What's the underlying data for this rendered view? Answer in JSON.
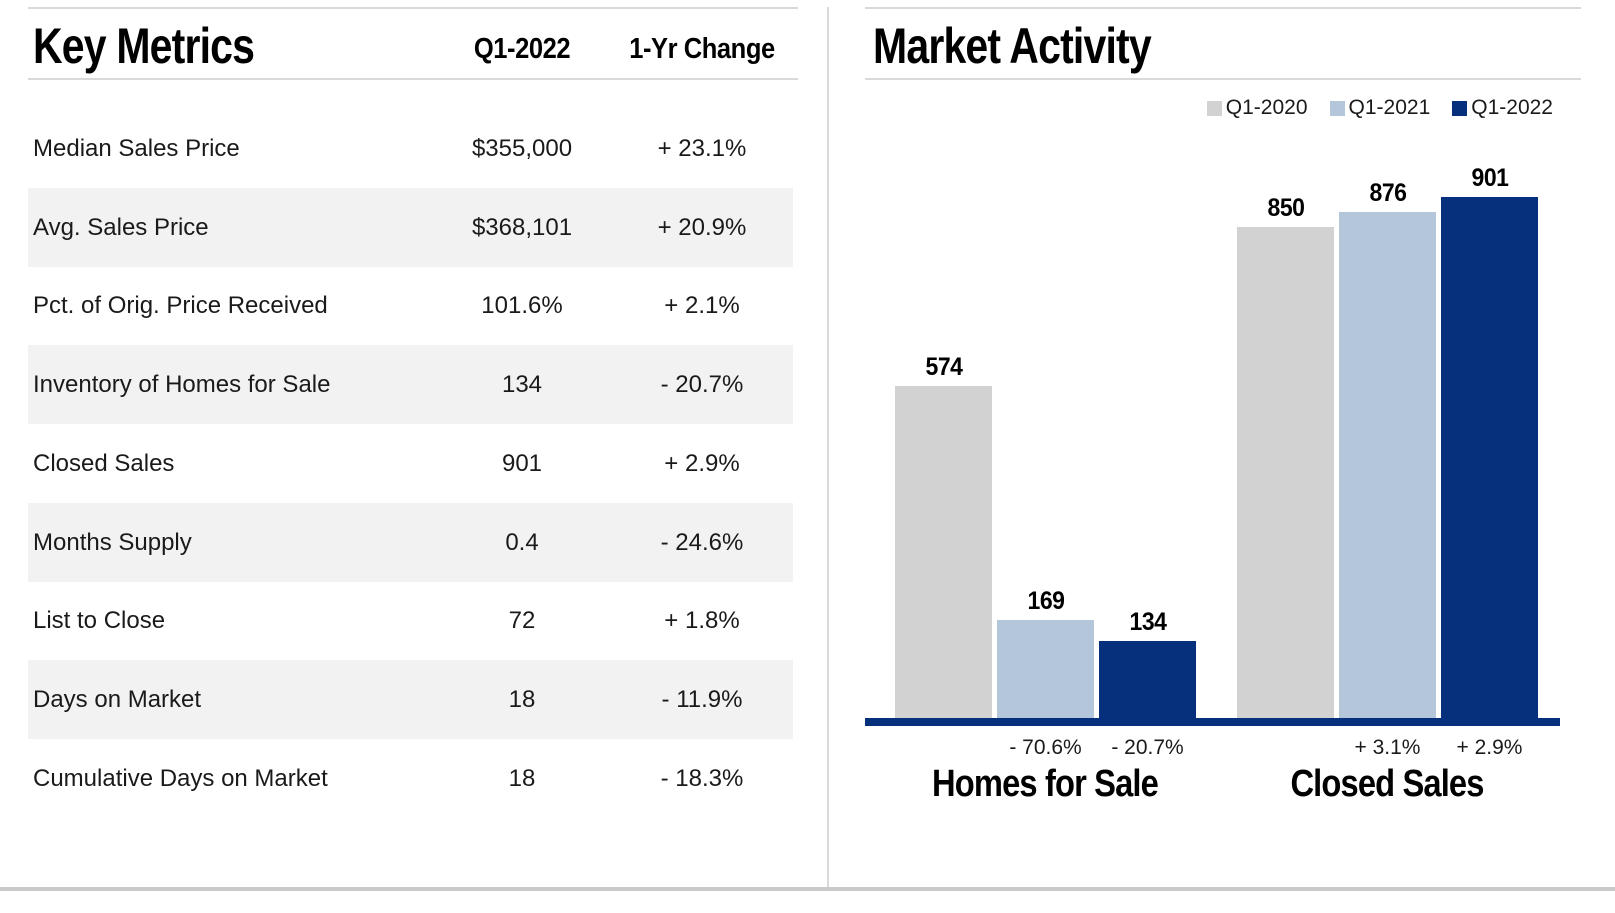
{
  "left_panel": {
    "title": "Key Metrics",
    "column_headers": [
      "Q1-2022",
      "1-Yr Change"
    ],
    "rows": [
      {
        "label": "Median Sales Price",
        "value": "$355,000",
        "change": "+ 23.1%",
        "shaded": false
      },
      {
        "label": "Avg. Sales Price",
        "value": "$368,101",
        "change": "+ 20.9%",
        "shaded": true
      },
      {
        "label": "Pct. of Orig. Price Received",
        "value": "101.6%",
        "change": "+ 2.1%",
        "shaded": false
      },
      {
        "label": "Inventory of Homes for Sale",
        "value": "134",
        "change": "- 20.7%",
        "shaded": true
      },
      {
        "label": "Closed Sales",
        "value": "901",
        "change": "+ 2.9%",
        "shaded": false
      },
      {
        "label": "Months Supply",
        "value": "0.4",
        "change": "- 24.6%",
        "shaded": true
      },
      {
        "label": "List to Close",
        "value": "72",
        "change": "+ 1.8%",
        "shaded": false
      },
      {
        "label": "Days on Market",
        "value": "18",
        "change": "- 11.9%",
        "shaded": true
      },
      {
        "label": "Cumulative Days on Market",
        "value": "18",
        "change": "- 18.3%",
        "shaded": false
      }
    ]
  },
  "right_panel": {
    "title": "Market Activity",
    "legend": [
      {
        "label": "Q1-2020",
        "color": "#d2d2d2"
      },
      {
        "label": "Q1-2021",
        "color": "#b4c6da"
      },
      {
        "label": "Q1-2022",
        "color": "#06307c"
      }
    ]
  },
  "chart_data": {
    "type": "bar",
    "title": "Market Activity",
    "categories": [
      "Homes for Sale",
      "Closed Sales"
    ],
    "series": [
      {
        "name": "Q1-2020",
        "color": "#d2d2d2",
        "values": [
          574,
          850
        ]
      },
      {
        "name": "Q1-2021",
        "color": "#b4c6da",
        "values": [
          169,
          876
        ]
      },
      {
        "name": "Q1-2022",
        "color": "#06307c",
        "values": [
          134,
          901
        ]
      }
    ],
    "change_labels": [
      [
        "",
        "- 70.6%",
        "- 20.7%"
      ],
      [
        "",
        "+ 3.1%",
        "+ 2.9%"
      ]
    ],
    "value_labels_shown": true,
    "xlabel": "",
    "ylabel": "",
    "ylim": [
      0,
      950
    ],
    "grid": false,
    "y_axis_shown": false,
    "legend_position": "top-right",
    "baseline_color": "#06307c"
  },
  "style": {
    "shaded_row_bg": "#f2f2f2",
    "rule_color": "#d9d9d9",
    "accent_navy": "#06307c"
  }
}
